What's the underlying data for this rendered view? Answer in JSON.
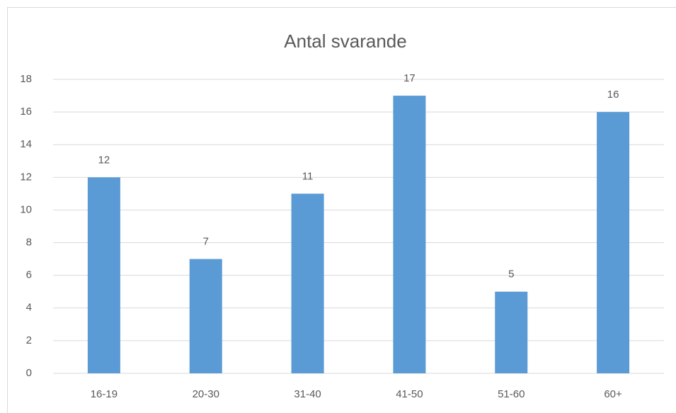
{
  "chart_data": {
    "type": "bar",
    "title": "Antal svarande",
    "categories": [
      "16-19",
      "20-30",
      "31-40",
      "41-50",
      "51-60",
      "60+"
    ],
    "values": [
      12,
      7,
      11,
      17,
      5,
      16
    ],
    "color": "#5b9bd5",
    "ylim": [
      0,
      18
    ],
    "yticks": [
      0,
      2,
      4,
      6,
      8,
      10,
      12,
      14,
      16,
      18
    ],
    "grid": true,
    "data_labels": true
  }
}
